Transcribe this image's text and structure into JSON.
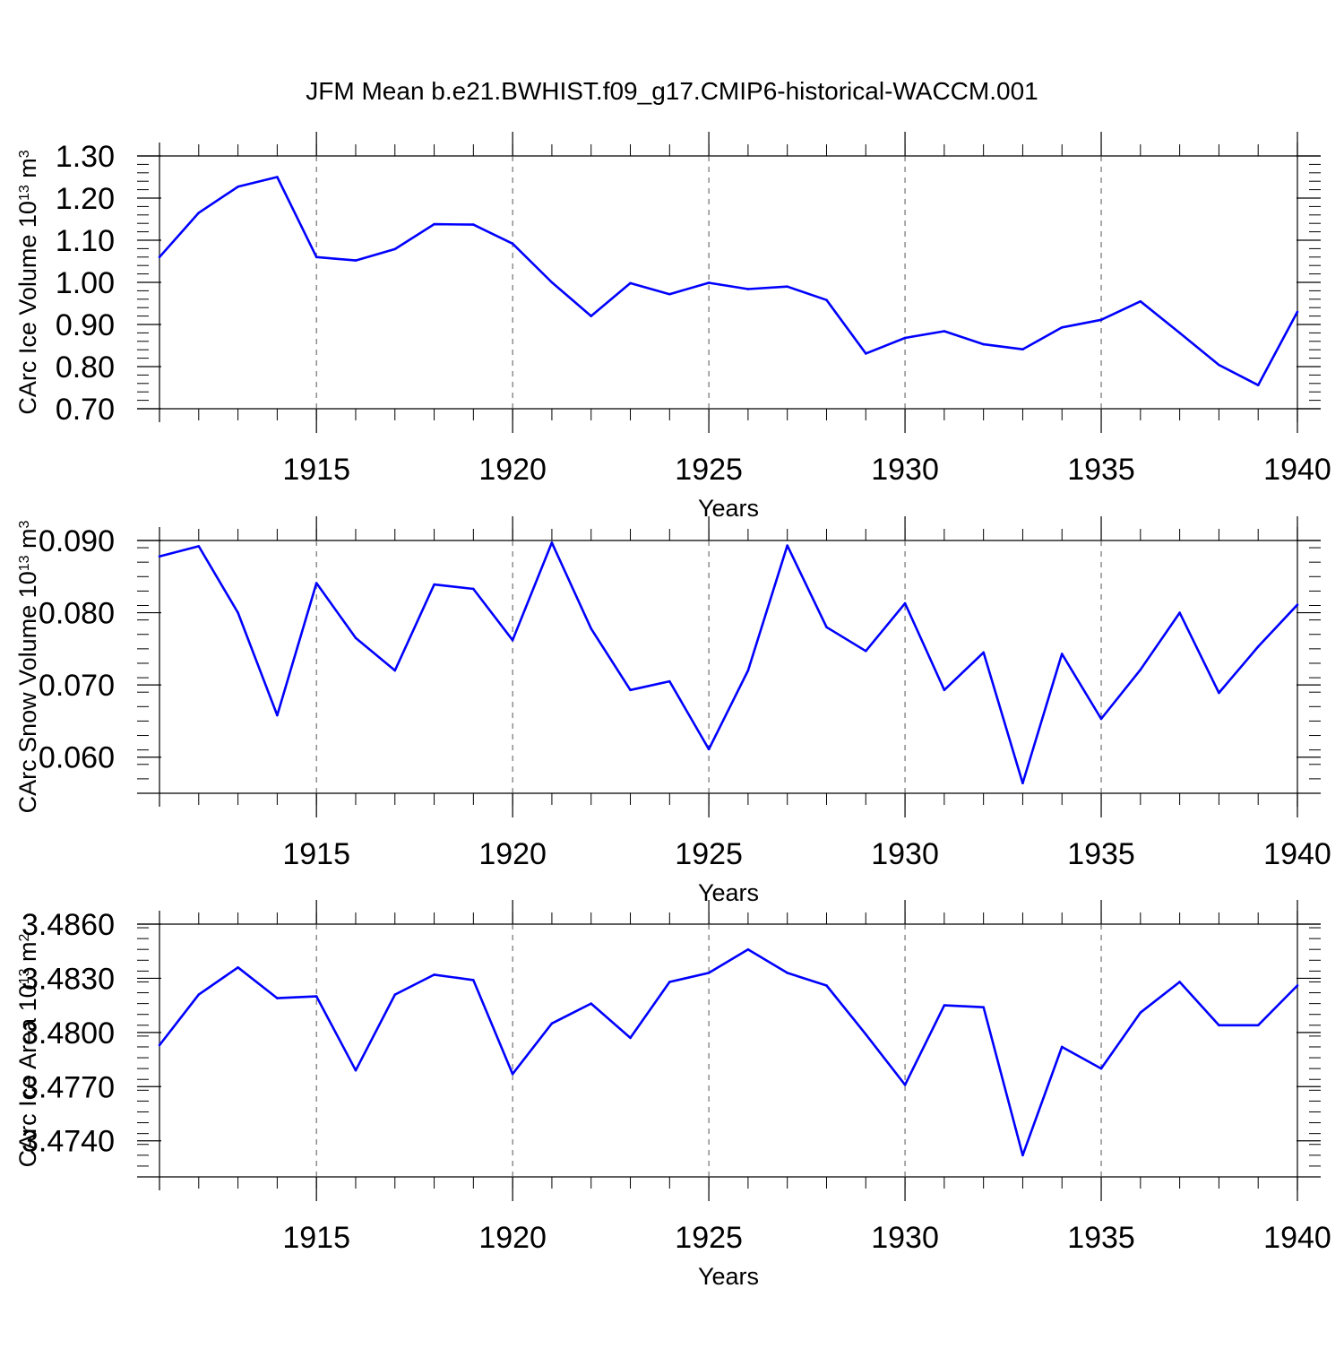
{
  "figure_title": "JFM Mean b.e21.BWHIST.f09_g17.CMIP6-historical-WACCM.001",
  "colors": {
    "line": "#0000ff",
    "axis": "#000000",
    "gridline": "#555555"
  },
  "chart_data": [
    {
      "type": "line",
      "title": "JFM Mean b.e21.BWHIST.f09_g17.CMIP6-historical-WACCM.001",
      "xlabel": "Years",
      "ylabel": "CArc Ice Volume 10",
      "ylabel_sup": "13",
      "ylabel_unit": " m",
      "ylabel_unit_sup": "3",
      "xlim": [
        1911,
        1940
      ],
      "ylim": [
        0.7,
        1.3
      ],
      "x_ticks": [
        "1915",
        "1920",
        "1925",
        "1930",
        "1935",
        "1940"
      ],
      "y_ticks": [
        "0.70",
        "0.80",
        "0.90",
        "1.00",
        "1.10",
        "1.20",
        "1.30"
      ],
      "x": [
        1911,
        1912,
        1913,
        1914,
        1915,
        1916,
        1917,
        1918,
        1919,
        1920,
        1921,
        1922,
        1923,
        1924,
        1925,
        1926,
        1927,
        1928,
        1929,
        1930,
        1931,
        1932,
        1933,
        1934,
        1935,
        1936,
        1937,
        1938,
        1939,
        1940
      ],
      "series": [
        {
          "name": "CArc Ice Volume",
          "values": [
            1.06,
            1.165,
            1.227,
            1.25,
            1.06,
            1.052,
            1.079,
            1.138,
            1.137,
            1.092,
            1.0,
            0.92,
            0.998,
            0.972,
            0.999,
            0.984,
            0.99,
            0.958,
            0.831,
            0.868,
            0.884,
            0.853,
            0.841,
            0.893,
            0.911,
            0.955,
            0.88,
            0.804,
            0.756,
            0.93
          ]
        }
      ]
    },
    {
      "type": "line",
      "xlabel": "Years",
      "ylabel": "CArc Snow Volume 10",
      "ylabel_sup": "13",
      "ylabel_unit": " m",
      "ylabel_unit_sup": "3",
      "xlim": [
        1911,
        1940
      ],
      "ylim": [
        0.055,
        0.09
      ],
      "x_ticks": [
        "1915",
        "1920",
        "1925",
        "1930",
        "1935",
        "1940"
      ],
      "y_ticks": [
        "0.060",
        "0.070",
        "0.080",
        "0.090"
      ],
      "x": [
        1911,
        1912,
        1913,
        1914,
        1915,
        1916,
        1917,
        1918,
        1919,
        1920,
        1921,
        1922,
        1923,
        1924,
        1925,
        1926,
        1927,
        1928,
        1929,
        1930,
        1931,
        1932,
        1933,
        1934,
        1935,
        1936,
        1937,
        1938,
        1939,
        1940
      ],
      "series": [
        {
          "name": "CArc Snow Volume",
          "values": [
            0.0878,
            0.0892,
            0.08,
            0.0658,
            0.0841,
            0.0765,
            0.072,
            0.0839,
            0.0833,
            0.0762,
            0.0897,
            0.0778,
            0.0693,
            0.0705,
            0.0611,
            0.072,
            0.0893,
            0.078,
            0.0747,
            0.0813,
            0.0693,
            0.0745,
            0.0564,
            0.0743,
            0.0653,
            0.0721,
            0.08,
            0.0689,
            0.0753,
            0.0811
          ]
        }
      ]
    },
    {
      "type": "line",
      "xlabel": "Years",
      "ylabel": "CArc Ice Area 10",
      "ylabel_sup": "13",
      "ylabel_unit": " m",
      "ylabel_unit_sup": "2",
      "xlim": [
        1911,
        1940
      ],
      "ylim": [
        3.472,
        3.486
      ],
      "x_ticks": [
        "1915",
        "1920",
        "1925",
        "1930",
        "1935",
        "1940"
      ],
      "y_ticks": [
        "3.4740",
        "3.4770",
        "3.4800",
        "3.4830",
        "3.4860"
      ],
      "x": [
        1911,
        1912,
        1913,
        1914,
        1915,
        1916,
        1917,
        1918,
        1919,
        1920,
        1921,
        1922,
        1923,
        1924,
        1925,
        1926,
        1927,
        1928,
        1929,
        1930,
        1931,
        1932,
        1933,
        1934,
        1935,
        1936,
        1937,
        1938,
        1939,
        1940
      ],
      "series": [
        {
          "name": "CArc Ice Area",
          "values": [
            3.4793,
            3.4821,
            3.4836,
            3.4819,
            3.482,
            3.4779,
            3.4821,
            3.4832,
            3.4829,
            3.4777,
            3.4805,
            3.4816,
            3.4797,
            3.4828,
            3.4833,
            3.4846,
            3.4833,
            3.4826,
            3.4799,
            3.4771,
            3.4815,
            3.4814,
            3.4732,
            3.4792,
            3.478,
            3.4811,
            3.4828,
            3.4804,
            3.4804,
            3.4826
          ]
        }
      ]
    }
  ]
}
